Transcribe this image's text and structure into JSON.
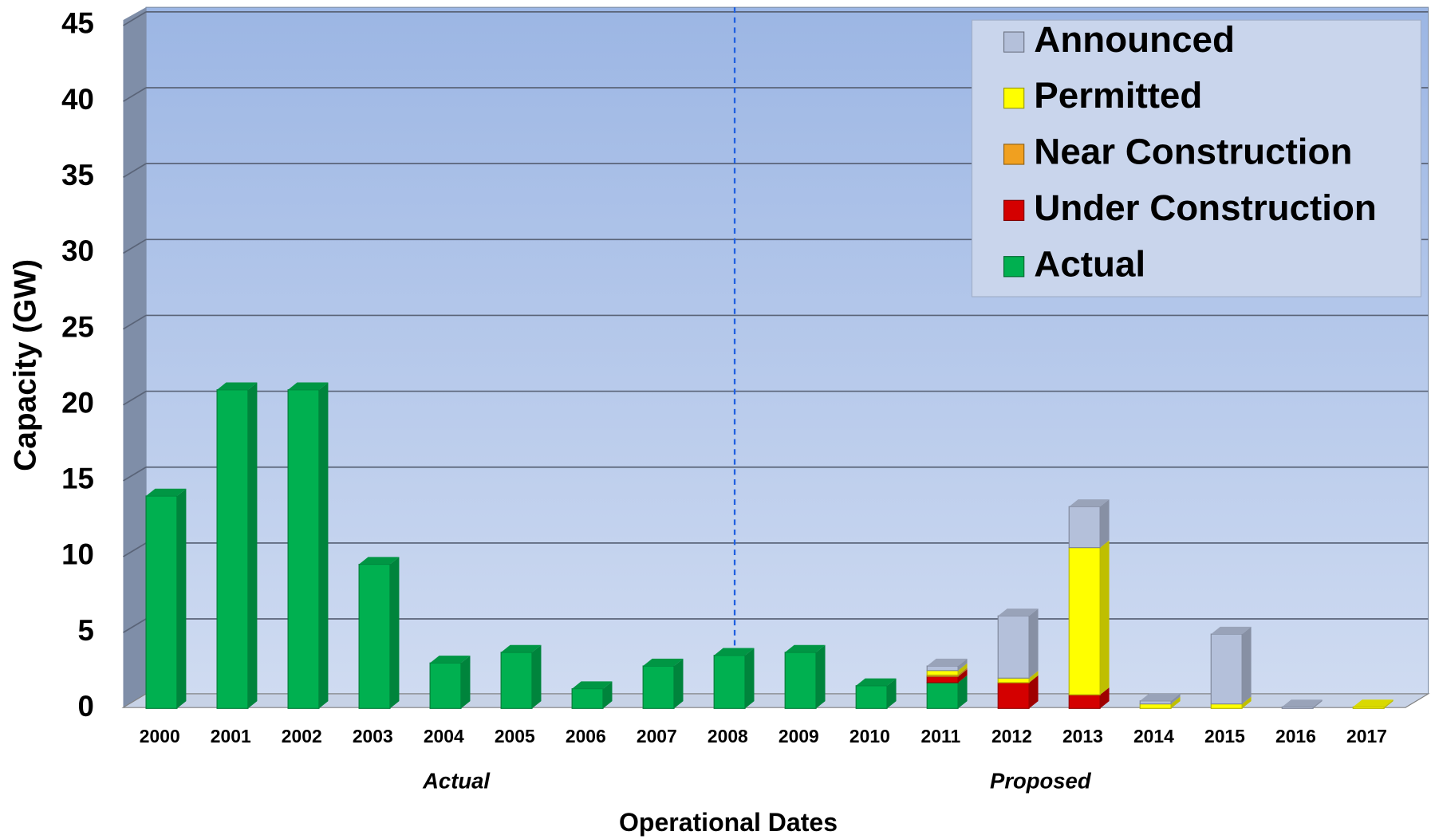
{
  "chart_data": {
    "type": "stacked_bar",
    "xlabel": "Operational Dates",
    "ylabel": "Capacity (GW)",
    "annotations": [
      "Actual",
      "Proposed"
    ],
    "categories": [
      "2000",
      "2001",
      "2002",
      "2003",
      "2004",
      "2005",
      "2006",
      "2007",
      "2008",
      "2009",
      "2010",
      "2011",
      "2012",
      "2013",
      "2014",
      "2015",
      "2016",
      "2017"
    ],
    "series": [
      {
        "name": "Actual",
        "color": "#00b050",
        "values": [
          14,
          21,
          21,
          9.5,
          3,
          3.7,
          1.3,
          2.8,
          3.5,
          3.7,
          1.5,
          1.7,
          0,
          0,
          0,
          0,
          0,
          0
        ]
      },
      {
        "name": "Under Construction",
        "color": "#d40000",
        "values": [
          0,
          0,
          0,
          0,
          0,
          0,
          0,
          0,
          0,
          0,
          0,
          0.4,
          1.7,
          0.9,
          0,
          0,
          0,
          0
        ]
      },
      {
        "name": "Near Construction",
        "color": "#f0a020",
        "values": [
          0,
          0,
          0,
          0,
          0,
          0,
          0,
          0,
          0,
          0,
          0,
          0.1,
          0,
          0,
          0,
          0,
          0,
          0
        ]
      },
      {
        "name": "Permitted",
        "color": "#ffff00",
        "values": [
          0,
          0,
          0,
          0,
          0,
          0,
          0,
          0,
          0,
          0,
          0,
          0.3,
          0.3,
          9.7,
          0.3,
          0.3,
          0,
          0.1
        ]
      },
      {
        "name": "Announced",
        "color": "#b4c0da",
        "values": [
          0,
          0,
          0,
          0,
          0,
          0,
          0,
          0,
          0,
          0,
          0,
          0.3,
          4.1,
          2.7,
          0.2,
          4.6,
          0.1,
          0
        ]
      }
    ],
    "ylim": [
      0,
      45
    ],
    "yticks": [
      0,
      5,
      10,
      15,
      20,
      25,
      30,
      35,
      40,
      45
    ],
    "grid": true,
    "legend": "upper right"
  }
}
